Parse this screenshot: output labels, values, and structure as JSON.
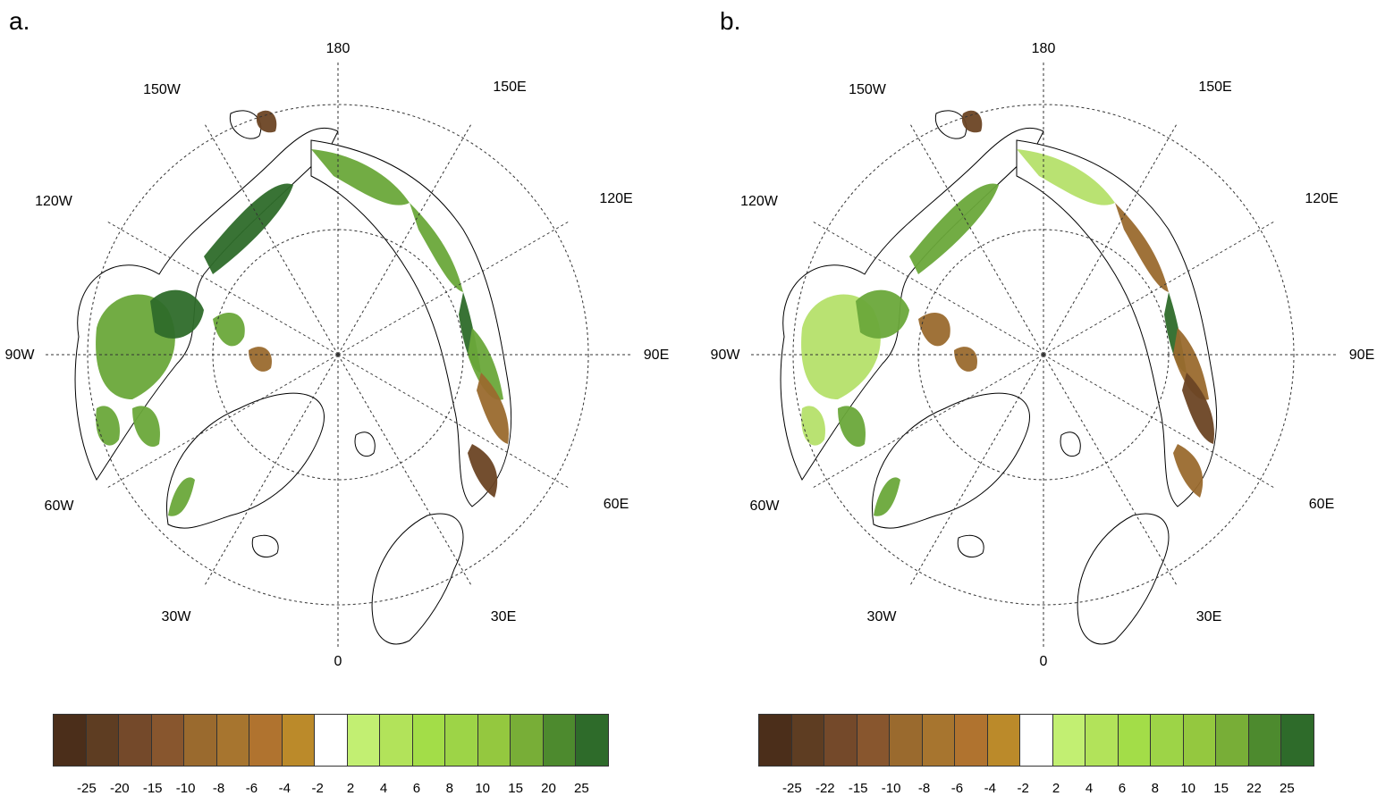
{
  "panels": [
    {
      "letter": "a.",
      "lon_labels": [
        "180",
        "150E",
        "120E",
        "90E",
        "60E",
        "30E",
        "0",
        "30W",
        "60W",
        "90W",
        "120W",
        "150W"
      ],
      "colorbar": {
        "colors": [
          "#4b2e1a",
          "#5e3d22",
          "#74492a",
          "#88562e",
          "#9a6a2e",
          "#a7752f",
          "#b0732f",
          "#bb8a2a",
          "#ffffff",
          "#c2ef72",
          "#b2e35a",
          "#a3dd48",
          "#9dd447",
          "#94c83f",
          "#78ae37",
          "#4d8a2e",
          "#2e6b2a"
        ],
        "labels": [
          "-25",
          "-20",
          "-15",
          "-10",
          "-8",
          "-6",
          "-4",
          "-2",
          "2",
          "4",
          "6",
          "8",
          "10",
          "15",
          "20",
          "25"
        ]
      }
    },
    {
      "letter": "b.",
      "lon_labels": [
        "180",
        "150E",
        "120E",
        "90E",
        "60E",
        "30E",
        "0",
        "30W",
        "60W",
        "90W",
        "120W",
        "150W"
      ],
      "colorbar": {
        "colors": [
          "#4b2e1a",
          "#5e3d22",
          "#74492a",
          "#88562e",
          "#9a6a2e",
          "#a7752f",
          "#b0732f",
          "#bb8a2a",
          "#ffffff",
          "#c2ef72",
          "#b2e35a",
          "#a3dd48",
          "#9dd447",
          "#94c83f",
          "#78ae37",
          "#4d8a2e",
          "#2e6b2a"
        ],
        "labels": [
          "-25",
          "-22",
          "-15",
          "-10",
          "-8",
          "-6",
          "-4",
          "-2",
          "2",
          "4",
          "6",
          "8",
          "10",
          "15",
          "22",
          "25"
        ]
      }
    }
  ],
  "palette": {
    "green_dark": "#2e6b2a",
    "green_mid": "#6aa83a",
    "green_light": "#b5e06a",
    "brown_dark": "#6b4424",
    "brown_mid": "#9a6a2e"
  }
}
